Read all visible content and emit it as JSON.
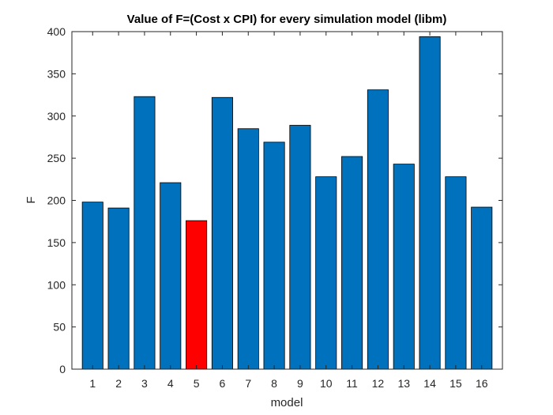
{
  "chart_data": {
    "type": "bar",
    "title": "Value of F=(Cost x CPI) for every simulation model (libm)",
    "xlabel": "model",
    "ylabel": "F",
    "categories": [
      "1",
      "2",
      "3",
      "4",
      "5",
      "6",
      "7",
      "8",
      "9",
      "10",
      "11",
      "12",
      "13",
      "14",
      "15",
      "16"
    ],
    "values": [
      198,
      191,
      323,
      221,
      176,
      322,
      285,
      269,
      289,
      228,
      252,
      331,
      243,
      394,
      228,
      192
    ],
    "ylim": [
      0,
      400
    ],
    "yticks": [
      "0",
      "50",
      "100",
      "150",
      "200",
      "250",
      "300",
      "350",
      "400"
    ],
    "highlight_index": 4,
    "colors": {
      "bar": "#0072BD",
      "highlight": "#FF0000",
      "edge": "#000000"
    },
    "grid": false,
    "legend": "none"
  }
}
